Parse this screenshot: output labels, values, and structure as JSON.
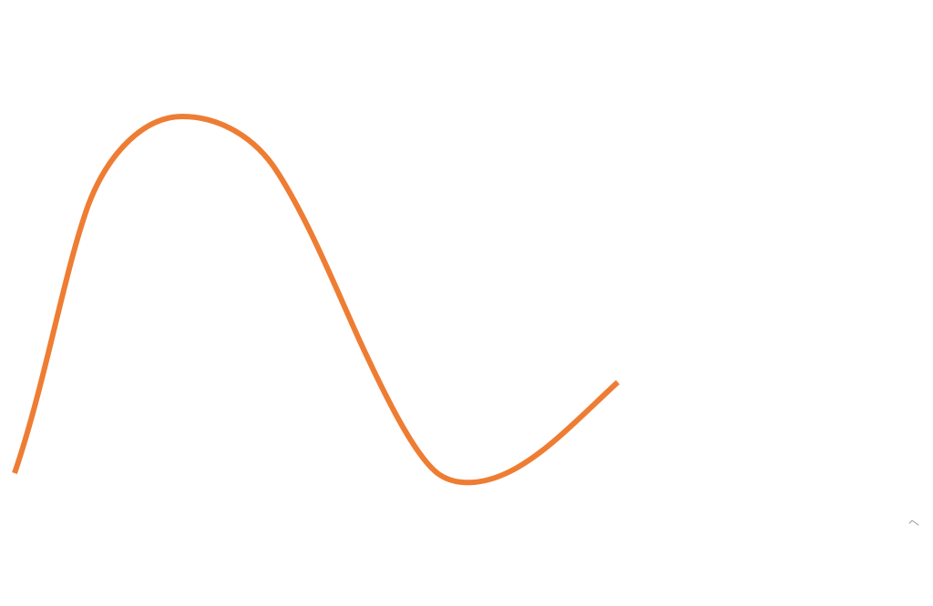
{
  "canvas": {
    "background": "#ffffff"
  },
  "curve": {
    "shape": "smooth single wave: rising to a crest, falling to a trough, then rising again and ending partway across",
    "stroke_color": "#ee7d33"
  },
  "corner_mark": {
    "icon": "small-tick-mark-icon",
    "stroke_color": "#9a9a9a"
  }
}
